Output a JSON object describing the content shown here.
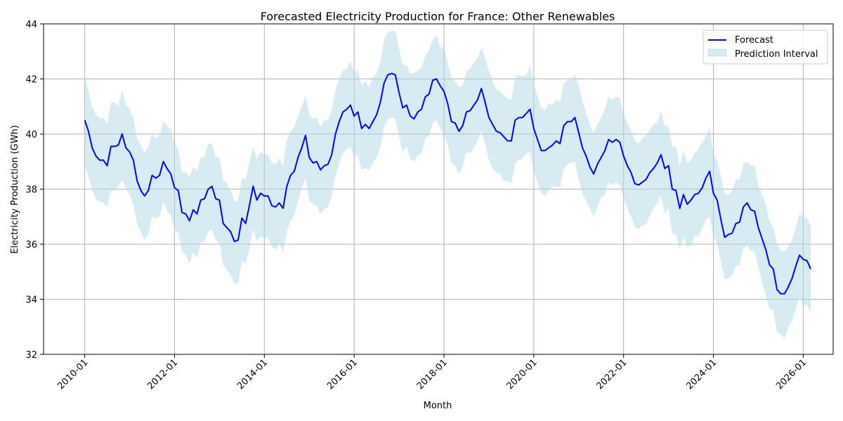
{
  "chart_data": {
    "type": "line",
    "title": "Forecasted Electricity Production for France: Other Renewables",
    "xlabel": "Month",
    "ylabel": "Electricity Production (GWh)",
    "ylim": [
      32,
      44
    ],
    "xlim": [
      "2009-02",
      "2026-09"
    ],
    "x_start": "2010-01",
    "x_ticks": [
      "2010-01",
      "2012-01",
      "2014-01",
      "2016-01",
      "2018-01",
      "2020-01",
      "2022-01",
      "2024-01",
      "2026-01"
    ],
    "y_ticks": [
      32,
      34,
      36,
      38,
      40,
      42,
      44
    ],
    "grid": true,
    "legend_position": "top-right",
    "series": [
      {
        "name": "Forecast",
        "type": "line",
        "color": "#0000ff",
        "values": [
          40.5,
          40.1,
          39.5,
          39.2,
          39.05,
          39.05,
          38.85,
          39.55,
          39.55,
          39.6,
          40.0,
          39.5,
          39.35,
          39.05,
          38.3,
          37.95,
          37.75,
          37.95,
          38.5,
          38.4,
          38.5,
          39.0,
          38.75,
          38.55,
          38.05,
          37.95,
          37.15,
          37.1,
          36.85,
          37.25,
          37.1,
          37.6,
          37.65,
          38.0,
          38.1,
          37.65,
          37.6,
          36.75,
          36.6,
          36.45,
          36.1,
          36.15,
          36.95,
          36.75,
          37.4,
          38.1,
          37.6,
          37.85,
          37.75,
          37.75,
          37.4,
          37.35,
          37.5,
          37.3,
          38.1,
          38.5,
          38.65,
          39.15,
          39.5,
          39.95,
          39.15,
          38.95,
          39.0,
          38.7,
          38.85,
          38.9,
          39.25,
          40.0,
          40.45,
          40.8,
          40.9,
          41.05,
          40.65,
          40.8,
          40.2,
          40.35,
          40.2,
          40.45,
          40.7,
          41.15,
          41.85,
          42.15,
          42.2,
          42.15,
          41.5,
          40.95,
          41.05,
          40.65,
          40.55,
          40.8,
          40.9,
          41.35,
          41.45,
          41.95,
          42.0,
          41.75,
          41.55,
          41.1,
          40.45,
          40.4,
          40.1,
          40.3,
          40.8,
          40.85,
          41.05,
          41.25,
          41.65,
          41.15,
          40.6,
          40.35,
          40.1,
          40.05,
          39.9,
          39.75,
          39.75,
          40.5,
          40.6,
          40.6,
          40.75,
          40.9,
          40.2,
          39.8,
          39.4,
          39.4,
          39.5,
          39.6,
          39.75,
          39.65,
          40.3,
          40.45,
          40.45,
          40.6,
          40.05,
          39.5,
          39.2,
          38.8,
          38.55,
          38.9,
          39.15,
          39.4,
          39.8,
          39.7,
          39.8,
          39.7,
          39.2,
          38.85,
          38.6,
          38.2,
          38.15,
          38.25,
          38.35,
          38.6,
          38.75,
          38.95,
          39.25,
          38.75,
          38.85,
          38.0,
          37.95,
          37.3,
          37.8,
          37.45,
          37.6,
          37.8,
          37.85,
          38.05,
          38.4,
          38.65,
          37.85,
          37.6,
          36.9,
          36.25,
          36.35,
          36.4,
          36.75,
          36.8,
          37.35,
          37.5,
          37.25,
          37.2,
          36.6,
          36.2,
          35.8,
          35.25,
          35.1,
          34.35,
          34.2,
          34.2,
          34.45,
          34.75,
          35.2,
          35.6,
          35.45,
          35.4,
          35.1
        ]
      },
      {
        "name": "Prediction Interval",
        "type": "area",
        "color": "#add8e6",
        "opacity": 0.5,
        "upper": [
          42.1,
          41.55,
          40.95,
          40.7,
          40.55,
          40.6,
          40.35,
          41.15,
          41.15,
          41.0,
          41.6,
          41.05,
          40.9,
          40.6,
          39.8,
          39.6,
          39.3,
          39.55,
          40.0,
          39.85,
          39.95,
          40.45,
          40.3,
          40.15,
          39.65,
          39.45,
          38.6,
          38.6,
          38.45,
          38.8,
          38.65,
          39.15,
          39.2,
          39.65,
          39.65,
          39.15,
          39.15,
          38.35,
          38.15,
          37.95,
          37.55,
          37.6,
          38.4,
          38.35,
          38.95,
          39.55,
          39.1,
          39.35,
          39.25,
          39.25,
          38.95,
          38.9,
          39.1,
          38.85,
          39.75,
          40.1,
          40.25,
          40.65,
          41.0,
          41.4,
          40.7,
          40.55,
          40.6,
          40.25,
          40.5,
          40.5,
          40.85,
          41.6,
          42.0,
          42.3,
          42.35,
          42.65,
          42.2,
          42.35,
          41.75,
          41.9,
          41.7,
          42.05,
          42.2,
          42.6,
          43.45,
          43.7,
          43.75,
          43.75,
          43.1,
          42.5,
          42.5,
          42.2,
          42.2,
          42.3,
          42.4,
          42.85,
          43.05,
          43.4,
          43.6,
          43.15,
          43.15,
          42.6,
          42.05,
          41.9,
          41.7,
          41.75,
          42.3,
          42.35,
          42.6,
          42.75,
          43.15,
          42.75,
          42.3,
          41.95,
          41.6,
          41.55,
          41.4,
          41.3,
          41.25,
          42.05,
          42.15,
          42.1,
          42.15,
          42.45,
          41.85,
          41.35,
          40.95,
          40.9,
          41.1,
          41.05,
          41.25,
          41.15,
          41.85,
          41.95,
          41.95,
          42.15,
          41.75,
          41.2,
          40.75,
          40.35,
          40.05,
          40.35,
          40.6,
          40.9,
          41.35,
          41.25,
          41.35,
          41.3,
          40.7,
          40.4,
          40.15,
          39.75,
          39.65,
          39.85,
          39.95,
          40.15,
          40.35,
          40.4,
          40.85,
          40.3,
          40.3,
          39.55,
          39.55,
          38.85,
          39.4,
          38.95,
          39.05,
          39.3,
          39.45,
          39.7,
          39.9,
          40.25,
          39.25,
          39.05,
          38.45,
          37.85,
          37.8,
          37.95,
          38.35,
          38.35,
          38.9,
          39.0,
          38.85,
          38.85,
          38.15,
          37.8,
          37.45,
          36.85,
          36.6,
          36.0,
          35.75,
          35.75,
          35.9,
          36.15,
          36.6,
          37.1,
          37.0,
          36.95,
          36.65
        ],
        "lower": [
          38.9,
          38.45,
          37.95,
          37.65,
          37.55,
          37.5,
          37.35,
          37.95,
          37.95,
          38.1,
          38.35,
          38.0,
          37.8,
          37.45,
          36.75,
          36.45,
          36.15,
          36.35,
          37.0,
          36.95,
          37.0,
          37.55,
          37.2,
          37.05,
          36.5,
          36.45,
          35.75,
          35.6,
          35.3,
          35.7,
          35.5,
          36.05,
          36.1,
          36.45,
          36.55,
          36.15,
          36.05,
          35.25,
          35.05,
          34.9,
          34.55,
          34.6,
          35.4,
          35.3,
          35.85,
          36.55,
          36.1,
          36.3,
          36.2,
          36.25,
          35.9,
          35.8,
          36.0,
          35.7,
          36.45,
          36.85,
          37.05,
          37.6,
          38.0,
          38.4,
          37.6,
          37.45,
          37.4,
          37.1,
          37.3,
          37.35,
          37.75,
          38.5,
          38.9,
          39.3,
          39.45,
          39.55,
          39.1,
          39.25,
          38.7,
          38.75,
          38.7,
          38.95,
          39.15,
          39.55,
          40.25,
          40.55,
          40.6,
          40.55,
          39.9,
          39.35,
          39.55,
          39.1,
          39.0,
          39.25,
          39.3,
          39.85,
          39.95,
          40.4,
          40.5,
          40.2,
          40.0,
          39.6,
          38.95,
          38.85,
          38.55,
          38.8,
          39.35,
          39.3,
          39.5,
          39.75,
          40.1,
          39.65,
          39.05,
          38.75,
          38.6,
          38.55,
          38.3,
          38.3,
          38.2,
          38.95,
          39.05,
          39.1,
          39.3,
          39.35,
          38.65,
          38.25,
          37.85,
          37.75,
          37.95,
          38.1,
          38.1,
          38.05,
          38.75,
          38.9,
          38.95,
          39.0,
          38.35,
          37.85,
          37.55,
          37.3,
          37.0,
          37.35,
          37.7,
          37.8,
          38.25,
          38.15,
          38.25,
          38.15,
          37.65,
          37.3,
          37.0,
          36.65,
          36.55,
          36.7,
          36.7,
          37.05,
          37.3,
          37.5,
          37.75,
          37.1,
          37.3,
          36.4,
          36.35,
          35.8,
          36.25,
          35.9,
          35.95,
          36.3,
          36.3,
          36.55,
          36.9,
          37.0,
          36.3,
          36.0,
          35.35,
          34.75,
          34.75,
          34.9,
          35.2,
          35.25,
          35.85,
          35.95,
          35.75,
          35.75,
          35.2,
          34.6,
          34.15,
          33.65,
          33.6,
          32.8,
          32.75,
          32.55,
          33.0,
          33.2,
          33.65,
          34.05,
          33.8,
          33.8,
          33.55
        ]
      }
    ]
  }
}
